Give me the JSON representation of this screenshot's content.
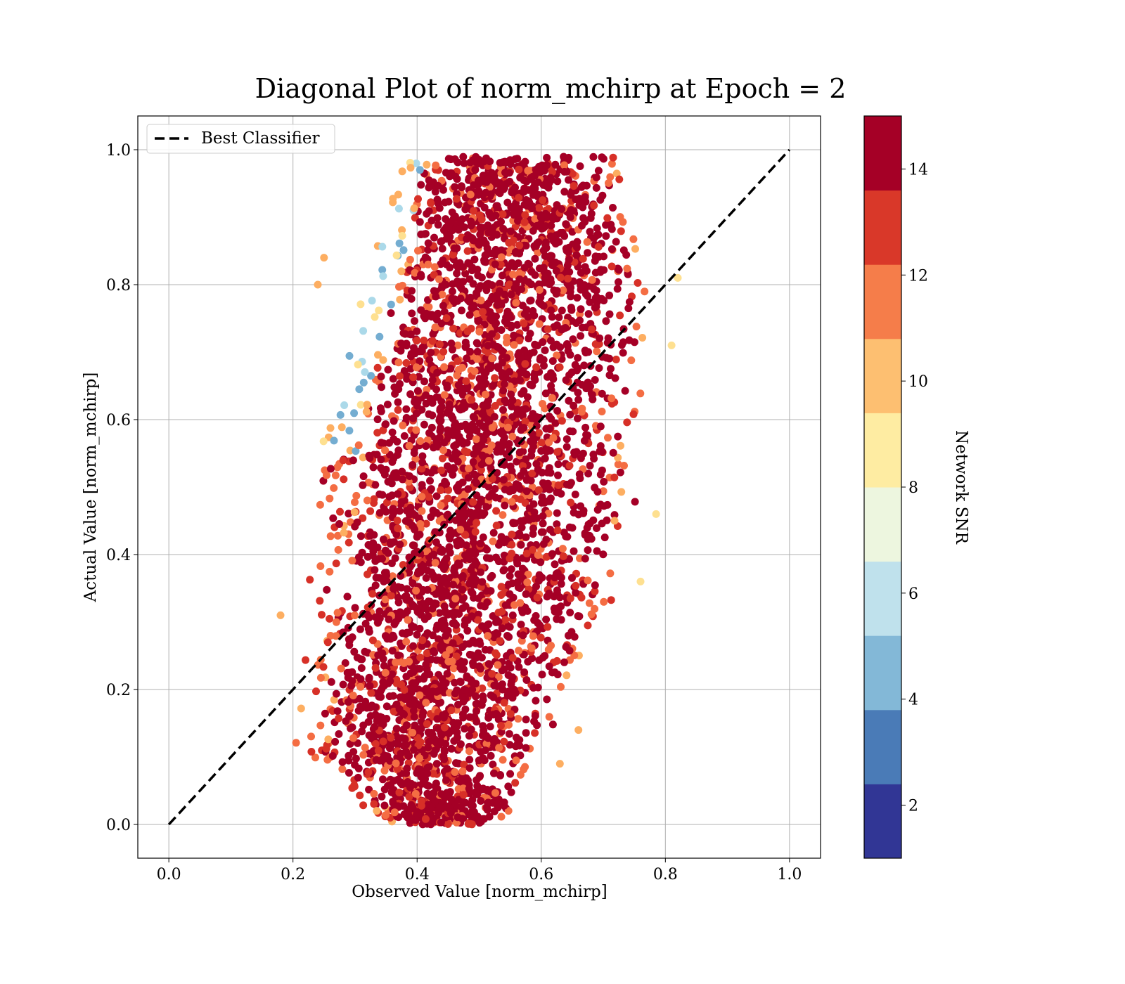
{
  "chart_data": {
    "type": "scatter",
    "title": "Diagonal Plot of norm_mchirp at Epoch = 2",
    "xlabel": "Observed Value [norm_mchirp]",
    "ylabel": "Actual Value [norm_mchirp]",
    "xlim": [
      -0.05,
      1.05
    ],
    "ylim": [
      -0.05,
      1.05
    ],
    "x_ticks": [
      "0.0",
      "0.2",
      "0.4",
      "0.6",
      "0.8",
      "1.0"
    ],
    "y_ticks": [
      "0.0",
      "0.2",
      "0.4",
      "0.6",
      "0.8",
      "1.0"
    ],
    "grid": true,
    "legend": {
      "placement": "upper-left",
      "entries": [
        "Best Classifier"
      ]
    },
    "reference_line": {
      "name": "Best Classifier",
      "style": "dashed",
      "color": "#000000",
      "x": [
        0.0,
        1.0
      ],
      "y": [
        0.0,
        1.0
      ]
    },
    "color_encoding": {
      "label": "Network SNR",
      "range": [
        1,
        15
      ],
      "ticks": [
        "2",
        "4",
        "6",
        "8",
        "10",
        "12",
        "14"
      ],
      "colors": [
        "#313695",
        "#4575b4",
        "#74add1",
        "#abd9e9",
        "#e0f3f8",
        "#fee090",
        "#fdae61",
        "#f46d43",
        "#d73027",
        "#a50026"
      ],
      "colorbar_bands": [
        "#313695",
        "#4a7bb7",
        "#83b8d7",
        "#bfe1ec",
        "#edf6df",
        "#feeca2",
        "#fdbf71",
        "#f57d4a",
        "#d93829",
        "#a50026"
      ]
    },
    "cloud": {
      "description_points": [
        {
          "y": 0.0,
          "x_range": [
            0.35,
            0.55
          ]
        },
        {
          "y": 0.1,
          "x_range": [
            0.2,
            0.6
          ]
        },
        {
          "y": 0.2,
          "x_range": [
            0.2,
            0.66
          ]
        },
        {
          "y": 0.4,
          "x_range": [
            0.21,
            0.75
          ]
        },
        {
          "y": 0.6,
          "x_range": [
            0.25,
            0.77
          ]
        },
        {
          "y": 0.8,
          "x_range": [
            0.31,
            0.8
          ]
        },
        {
          "y": 0.99,
          "x_range": [
            0.37,
            0.73
          ]
        }
      ],
      "dominant_color": "#a50026"
    }
  }
}
